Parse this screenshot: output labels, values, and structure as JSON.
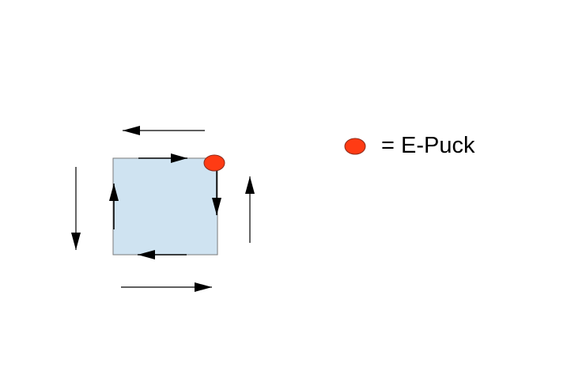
{
  "legend": {
    "label": "= E-Puck",
    "marker_icon": "e-puck-dot-icon"
  },
  "colors": {
    "square_fill": "#cfe3f1",
    "square_stroke": "#7a7a7a",
    "puck_fill": "#ff3b14",
    "puck_stroke": "#8c2a1a",
    "arrow": "#000000",
    "background": "#ffffff"
  }
}
